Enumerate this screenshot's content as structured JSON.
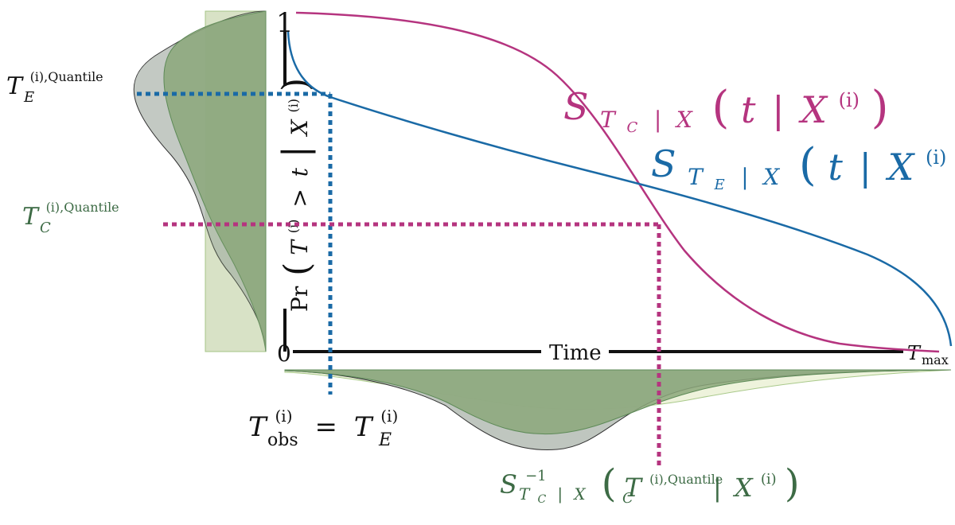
{
  "colors": {
    "magenta": "#b5347f",
    "blue": "#1a6aa6",
    "green_text": "#3d6b45",
    "dark_green_fill": "#8ba77a",
    "light_green_fill": "#eef3dc",
    "light_green_stroke": "#a9c98a",
    "grey_fill": "#c8cdc8",
    "black": "#111111"
  },
  "curves": {
    "control_curve_name": "S_{T_C | X}(t | X^{(i)})",
    "event_curve_name": "S_{T_E | X}(t | X^{(i)})"
  },
  "axes": {
    "y_top_tick": "1",
    "y_bottom_tick": "0",
    "y_label": "Pr(T^{(i)} > t | X^{(i)})",
    "x_label": "Time",
    "x_max_label": "T_max"
  },
  "labels": {
    "event_quantile": "T_E^{(i),Quantile}",
    "control_quantile": "T_C^{(i),Quantile}",
    "observed_time": "T_obs^{(i)} = T_E^{(i)}",
    "inverse_survival": "S^{-1}_{T_C | X}(T_C^{(i),Quantile} | X^{(i)})"
  },
  "text": {
    "S": "S",
    "T": "T",
    "C": "C",
    "E": "E",
    "X": "X",
    "i": "(i)",
    "t": "t",
    "bar": "|",
    "pr": "Pr",
    "gt": ">",
    "eq": "=",
    "obs": "obs",
    "max": "max",
    "quantile_sup": "(i),Quantile",
    "inv_sup": "−1",
    "lparen": "(",
    "rparen": ")"
  }
}
